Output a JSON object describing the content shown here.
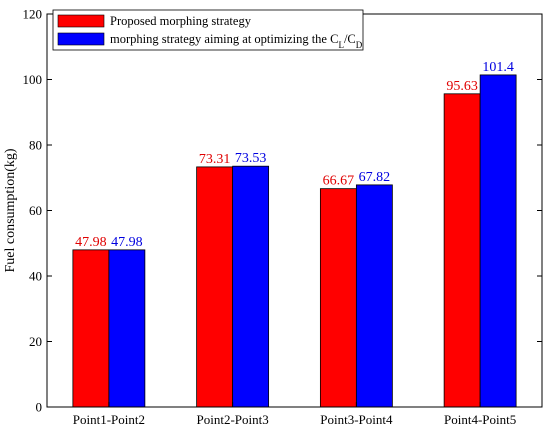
{
  "chart_data": {
    "type": "bar",
    "title": "",
    "xlabel": "",
    "ylabel": "Fuel consumption(kg)",
    "categories": [
      "Point1-Point2",
      "Point2-Point3",
      "Point3-Point4",
      "Point4-Point5"
    ],
    "series": [
      {
        "name": "Proposed morphing strategy",
        "color": "#ff0000",
        "label_color": "#e00000",
        "values": [
          47.98,
          73.31,
          66.67,
          95.63
        ],
        "labels": [
          "47.98",
          "73.31",
          "66.67",
          "95.63"
        ]
      },
      {
        "name": "morphing strategy aiming at optimizing the C_L/C_D",
        "color": "#0000ff",
        "label_color": "#0000e0",
        "values": [
          47.98,
          73.53,
          67.82,
          101.4
        ],
        "labels": [
          "47.98",
          "73.53",
          "67.82",
          "101.4"
        ]
      }
    ],
    "ylim": [
      0,
      120
    ],
    "yticks": [
      0,
      20,
      40,
      60,
      80,
      100,
      120
    ],
    "grid": false,
    "legend_position": "top-left"
  }
}
